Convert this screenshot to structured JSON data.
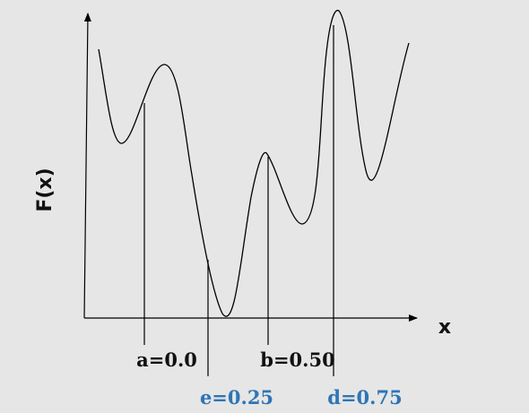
{
  "axes": {
    "y_label": "F(x)",
    "x_label": "x"
  },
  "markers": {
    "a": "a=0.0",
    "b": "b=0.50",
    "e": "e=0.25",
    "d": "d=0.75"
  },
  "colors": {
    "background": "#e6e6e6",
    "black_label": "#111111",
    "blue_label": "#2e75b6",
    "line": "#000000"
  }
}
